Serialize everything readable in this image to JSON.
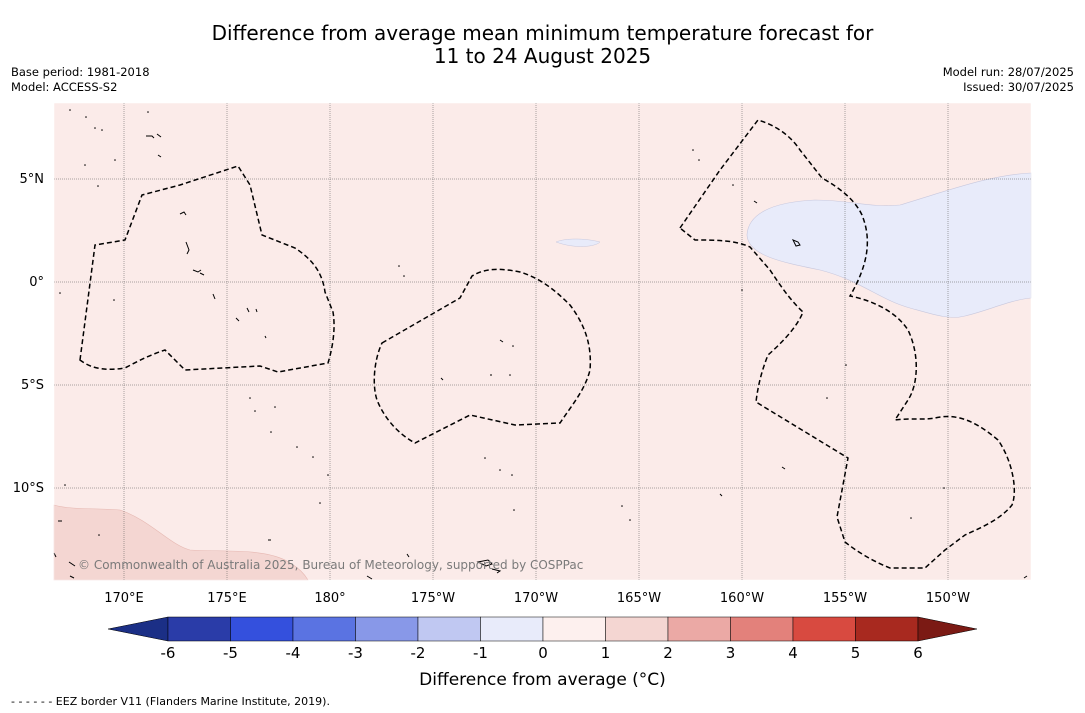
{
  "title": {
    "line1": "Difference from average mean minimum temperature forecast for",
    "line2": "11 to 24 August 2025"
  },
  "meta": {
    "base_period": "Base period: 1981-2018",
    "model": "Model: ACCESS-S2",
    "model_run": "Model run: 28/07/2025",
    "issued": "Issued: 30/07/2025"
  },
  "map": {
    "copyright": "© Commonwealth of Australia 2025, Bureau of Meteorology, supported by COSPPac",
    "background_color": "#fbebe9",
    "lon_labels": [
      "170°E",
      "175°E",
      "180°",
      "175°W",
      "170°W",
      "165°W",
      "160°W",
      "155°W",
      "150°W"
    ],
    "lat_labels": [
      "5°N",
      "0°",
      "5°S",
      "10°S"
    ],
    "regions": [
      {
        "category": "0 to 1",
        "color": "#fbebe9"
      },
      {
        "category": "1 to 2",
        "color": "#f4d6d2"
      },
      {
        "category": "-1 to 0",
        "color": "#e8ebfa"
      }
    ]
  },
  "colorbar": {
    "title": "Difference from average (°C)",
    "ticks": [
      "-6",
      "-5",
      "-4",
      "-3",
      "-2",
      "-1",
      "0",
      "1",
      "2",
      "3",
      "4",
      "5",
      "6"
    ],
    "colors": {
      "under": "#1b2f86",
      "bins": [
        "#2a3ca8",
        "#3450dd",
        "#5a73e2",
        "#8898e8",
        "#c0c8f2",
        "#e8ebfa",
        "#fdf0ee",
        "#f4d6d2",
        "#eba9a5",
        "#e3817b",
        "#d84a40",
        "#a8291f"
      ],
      "over": "#7b1a14"
    }
  },
  "footnote": "- -  - -  - - EEZ border V11 (Flanders Marine Institute, 2019)."
}
